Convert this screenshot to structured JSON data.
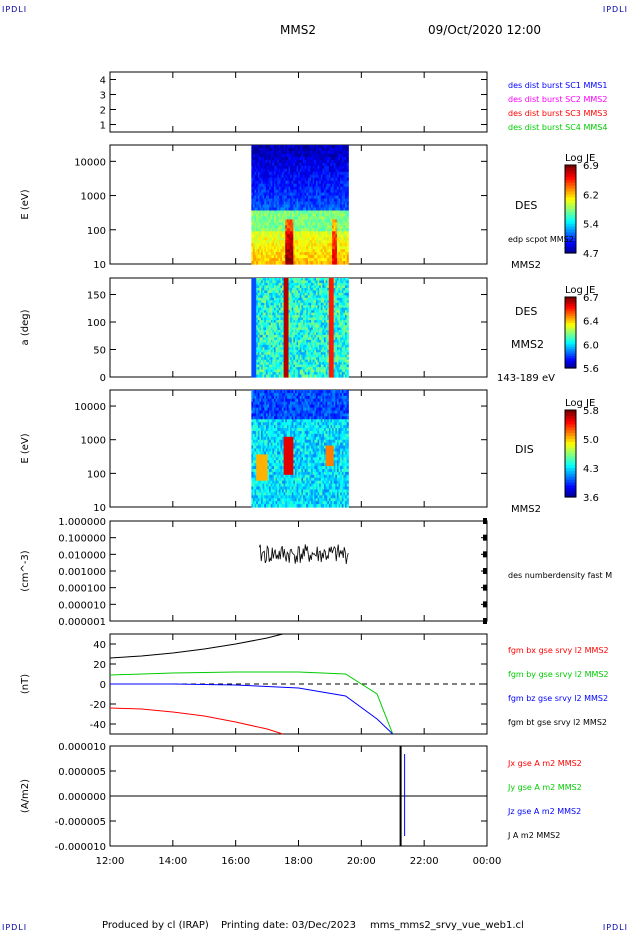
{
  "header": {
    "corner_label": "IPDLI",
    "title": "MMS2",
    "datetime": "09/Oct/2020 12:00"
  },
  "footer": {
    "produced_by": "Produced by cl (IRAP)",
    "printing_date": "Printing date: 03/Dec/2023",
    "filename": "mms_mms2_srvy_vue_web1.cl"
  },
  "x_axis": {
    "tick_labels": [
      "12:00",
      "14:00",
      "16:00",
      "18:00",
      "20:00",
      "22:00",
      "00:00"
    ]
  },
  "colors": {
    "blue": "#0000ff",
    "magenta": "#ff00ff",
    "red": "#ff0000",
    "green": "#00cc00",
    "black": "#000000"
  },
  "chart_data": [
    {
      "type": "table",
      "panel": "burst-availability",
      "ylim": [
        0.5,
        4.5
      ],
      "y_tick_labels": [
        "1",
        "2",
        "3",
        "4"
      ],
      "legend": [
        {
          "label": "des dist burst SC1 MMS1",
          "color": "#0000ff"
        },
        {
          "label": "des dist burst SC2 MMS2",
          "color": "#ff00ff"
        },
        {
          "label": "des dist burst SC3 MMS3",
          "color": "#ff0000"
        },
        {
          "label": "des dist burst SC4 MMS4",
          "color": "#00cc00"
        }
      ]
    },
    {
      "type": "heatmap",
      "panel": "des-energy",
      "ylabel": "E (eV)",
      "yscale": "log",
      "ylim": [
        10,
        30000
      ],
      "y_tick_labels": [
        "10",
        "100",
        "1000",
        "10000"
      ],
      "x_range": [
        "16:30",
        "19:35"
      ],
      "right_labels": [
        "DES",
        "edp scpot MMS2",
        "MMS2"
      ],
      "colorbar": {
        "title": "Log JE",
        "ticks": [
          "6.9",
          "6.2",
          "5.4",
          "4.7"
        ],
        "range": [
          4.7,
          6.9
        ]
      }
    },
    {
      "type": "heatmap",
      "panel": "des-pitch-angle",
      "ylabel": "a (deg)",
      "ylim": [
        0,
        180
      ],
      "y_tick_labels": [
        "0",
        "50",
        "100",
        "150"
      ],
      "x_range": [
        "16:30",
        "19:35"
      ],
      "right_labels": [
        "DES",
        "MMS2",
        "143-189 eV"
      ],
      "colorbar": {
        "title": "Log JE",
        "ticks": [
          "6.7",
          "6.4",
          "6.0",
          "5.6"
        ],
        "range": [
          5.6,
          6.7
        ]
      }
    },
    {
      "type": "heatmap",
      "panel": "dis-energy",
      "ylabel": "E (eV)",
      "yscale": "log",
      "ylim": [
        10,
        30000
      ],
      "y_tick_labels": [
        "10",
        "100",
        "1000",
        "10000"
      ],
      "x_range": [
        "16:30",
        "19:35"
      ],
      "right_labels": [
        "DIS",
        "MMS2"
      ],
      "colorbar": {
        "title": "Log JE",
        "ticks": [
          "5.8",
          "5.0",
          "4.3",
          "3.6"
        ],
        "range": [
          3.6,
          5.8
        ]
      }
    },
    {
      "type": "line",
      "panel": "density",
      "ylabel": "(cm^-3)",
      "yscale": "log",
      "ylim": [
        1e-06,
        1.0
      ],
      "y_tick_labels": [
        "1.000000",
        "0.100000",
        "0.010000",
        "0.001000",
        "0.000100",
        "0.000010",
        "0.000001"
      ],
      "series": [
        {
          "name": "des numberdensity fast M",
          "color": "#000000"
        }
      ]
    },
    {
      "type": "line",
      "panel": "magnetic-field",
      "ylabel": "(nT)",
      "ylim": [
        -50,
        50
      ],
      "y_tick_labels": [
        "40",
        "20",
        "0",
        "-20",
        "-40"
      ],
      "series": [
        {
          "name": "fgm bx gse srvy l2 MMS2",
          "color": "#ff0000",
          "x": [
            "12:00",
            "13:00",
            "14:00",
            "15:00",
            "16:00",
            "17:00",
            "17:30"
          ],
          "values": [
            -24,
            -25,
            -28,
            -32,
            -38,
            -45,
            -50
          ]
        },
        {
          "name": "fgm by gse srvy l2 MMS2",
          "color": "#00cc00",
          "x": [
            "12:00",
            "14:00",
            "16:00",
            "18:00",
            "19:30",
            "20:30",
            "21:00"
          ],
          "values": [
            9,
            11,
            12,
            12,
            10,
            -10,
            -50
          ]
        },
        {
          "name": "fgm bz gse srvy l2 MMS2",
          "color": "#0000ff",
          "x": [
            "12:00",
            "14:00",
            "16:00",
            "18:00",
            "19:30",
            "20:30",
            "21:00"
          ],
          "values": [
            0,
            0,
            -1,
            -4,
            -12,
            -35,
            -50
          ]
        },
        {
          "name": "fgm bt gse srvy l2 MMS2",
          "color": "#000000",
          "x": [
            "12:00",
            "13:00",
            "14:00",
            "15:00",
            "16:00",
            "17:00",
            "17:30"
          ],
          "values": [
            26,
            28,
            31,
            35,
            40,
            46,
            50
          ]
        }
      ]
    },
    {
      "type": "line",
      "panel": "current-density",
      "ylabel": "(A/m2)",
      "ylim": [
        -1e-05,
        1e-05
      ],
      "y_tick_labels": [
        "0.000010",
        "0.000005",
        "0.000000",
        "-0.000005",
        "-0.000010"
      ],
      "series": [
        {
          "name": "Jx gse A m2 MMS2",
          "color": "#ff0000"
        },
        {
          "name": "Jy gse A m2 MMS2",
          "color": "#00cc00"
        },
        {
          "name": "Jz gse A m2 MMS2",
          "color": "#0000ff"
        },
        {
          "name": "J A m2 MMS2",
          "color": "#000000"
        }
      ]
    }
  ]
}
